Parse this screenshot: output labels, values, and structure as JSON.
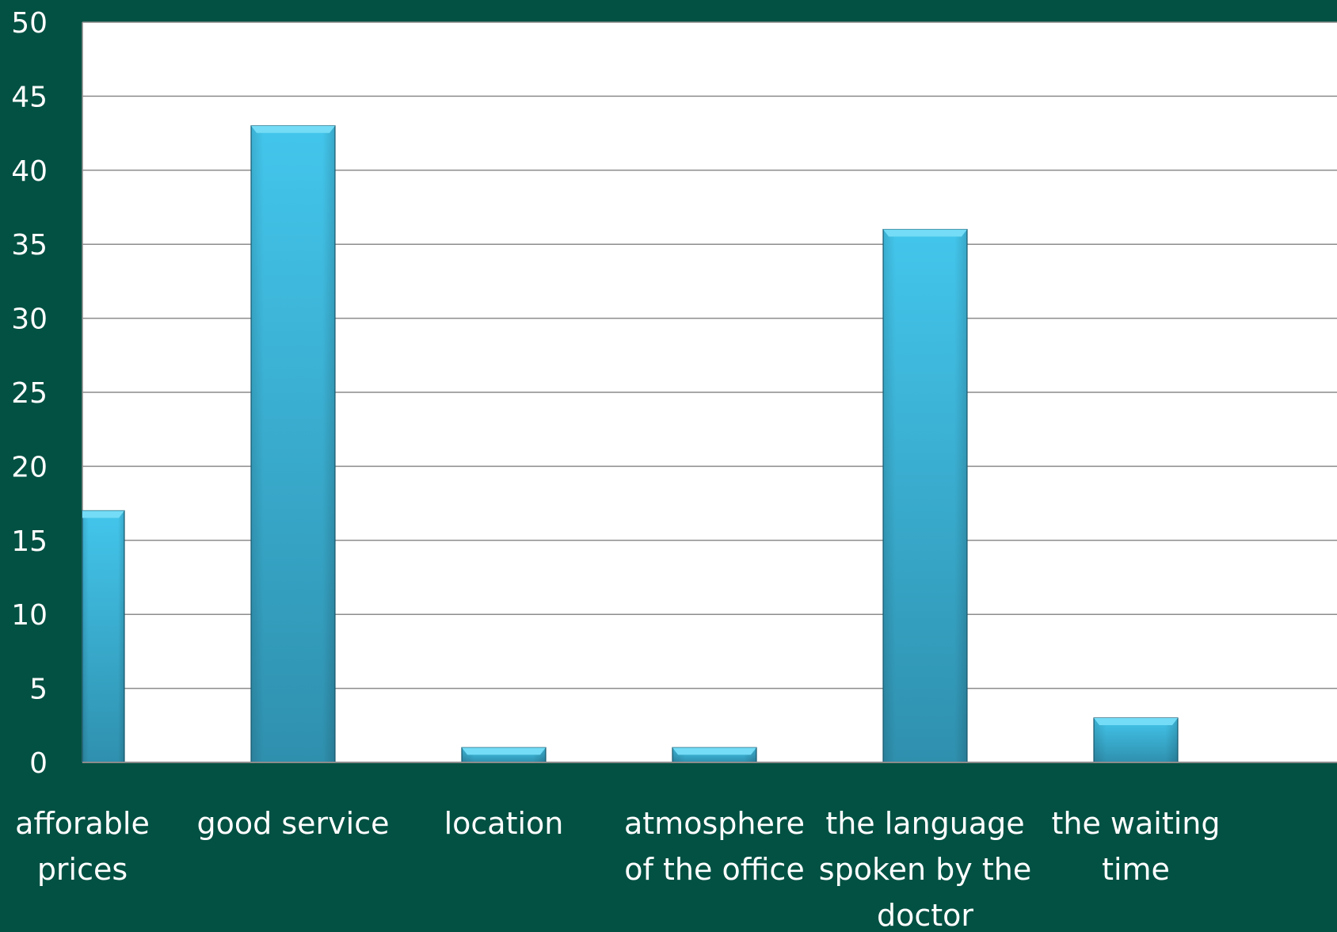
{
  "chart_data": {
    "type": "bar",
    "categories": [
      [
        "afforable",
        "prices"
      ],
      [
        "good service"
      ],
      [
        "location"
      ],
      [
        "atmosphere",
        "of the office"
      ],
      [
        "the language",
        "spoken by the",
        "doctor"
      ],
      [
        "the waiting",
        "time"
      ]
    ],
    "values": [
      17,
      43,
      1,
      1,
      36,
      3
    ],
    "ylim": [
      0,
      50
    ],
    "yticks": [
      0,
      5,
      10,
      15,
      20,
      25,
      30,
      35,
      40,
      45,
      50
    ],
    "grid": true,
    "legend": "none",
    "colors": {
      "background": "#025143",
      "plot_area": "#ffffff",
      "gridline": "#8c8c8c",
      "bar_top": "#43c6ec",
      "bar_bottom": "#2f90ae",
      "bar_cap": "#74dcf6",
      "bar_edge": "#1b5f74",
      "text": "#ffffff"
    }
  }
}
